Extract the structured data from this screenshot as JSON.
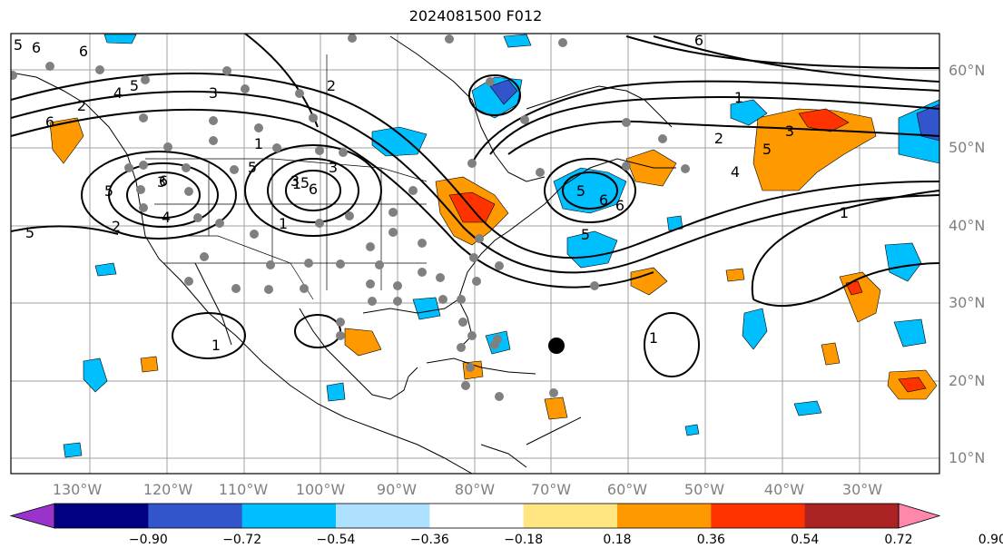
{
  "title": "2024081500 F012",
  "map": {
    "latitude_labels": [
      "60°N",
      "50°N",
      "40°N",
      "30°N",
      "20°N",
      "10°N"
    ],
    "longitude_labels": [
      "130°W",
      "120°W",
      "110°W",
      "100°W",
      "90°W",
      "80°W",
      "70°W",
      "60°W",
      "50°W",
      "40°W",
      "30°W"
    ],
    "contour_labels": [
      "5",
      "6",
      "4",
      "5",
      "3",
      "6",
      "2",
      "1",
      "5",
      "5",
      "3",
      "2",
      "5",
      "6",
      "4",
      "1",
      "1",
      "3",
      "3",
      "5",
      "6",
      "2",
      "5",
      "6",
      "6",
      "5",
      "6",
      "1",
      "2",
      "3",
      "5",
      "4",
      "1",
      "1",
      "1",
      "6"
    ],
    "colors": {
      "ocean": "#ffffff",
      "coastline": "#000000",
      "grid": "#808080",
      "storm_marker": "#000000",
      "station_dot": "#808080"
    }
  },
  "colorbar": {
    "tick_labels": [
      "−0.90",
      "−0.72",
      "−0.54",
      "−0.36",
      "−0.18",
      "0.18",
      "0.36",
      "0.54",
      "0.72",
      "0.90"
    ],
    "colors": [
      "#9933cc",
      "#000080",
      "#3355cc",
      "#00bfff",
      "#aee0ff",
      "#ffffff",
      "#ffe680",
      "#ff9900",
      "#ff3300",
      "#aa2222",
      "#ff88aa"
    ]
  }
}
